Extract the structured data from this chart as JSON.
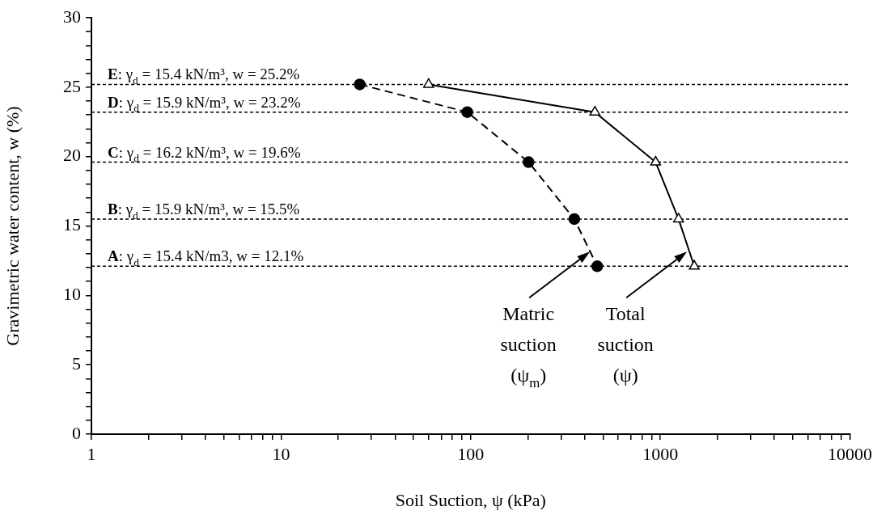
{
  "chart_data": {
    "type": "line",
    "xlabel": "Soil Suction, ψ (kPa)",
    "ylabel": "Gravimetric water content, w (%)",
    "log": "x",
    "xlim": [
      1,
      10000
    ],
    "xticks": [
      1,
      {
        "value": 2,
        "label": null
      },
      {
        "value": 3,
        "label": null
      },
      {
        "value": 4,
        "label": null
      },
      {
        "value": 5,
        "label": null
      },
      {
        "value": 6,
        "label": null
      },
      {
        "value": 7,
        "label": null
      },
      {
        "value": 8,
        "label": null
      },
      {
        "value": 9,
        "label": null
      },
      10,
      {
        "value": 20,
        "label": null
      },
      {
        "value": 30,
        "label": null
      },
      {
        "value": 40,
        "label": null
      },
      {
        "value": 50,
        "label": null
      },
      {
        "value": 60,
        "label": null
      },
      {
        "value": 70,
        "label": null
      },
      {
        "value": 80,
        "label": null
      },
      {
        "value": 90,
        "label": null
      },
      100,
      {
        "value": 200,
        "label": null
      },
      {
        "value": 300,
        "label": null
      },
      {
        "value": 400,
        "label": null
      },
      {
        "value": 500,
        "label": null
      },
      {
        "value": 600,
        "label": null
      },
      {
        "value": 700,
        "label": null
      },
      {
        "value": 800,
        "label": null
      },
      {
        "value": 900,
        "label": null
      },
      1000,
      {
        "value": 2000,
        "label": null
      },
      {
        "value": 3000,
        "label": null
      },
      {
        "value": 4000,
        "label": null
      },
      {
        "value": 5000,
        "label": null
      },
      {
        "value": 6000,
        "label": null
      },
      {
        "value": 7000,
        "label": null
      },
      {
        "value": 8000,
        "label": null
      },
      {
        "value": 9000,
        "label": null
      },
      10000
    ],
    "ylim": [
      0,
      30
    ],
    "yticks": [
      0,
      {
        "value": 1,
        "label": null
      },
      {
        "value": 2,
        "label": null
      },
      {
        "value": 3,
        "label": null
      },
      {
        "value": 4,
        "label": null
      },
      5,
      {
        "value": 6,
        "label": null
      },
      {
        "value": 7,
        "label": null
      },
      {
        "value": 8,
        "label": null
      },
      {
        "value": 9,
        "label": null
      },
      10,
      {
        "value": 11,
        "label": null
      },
      {
        "value": 12,
        "label": null
      },
      {
        "value": 13,
        "label": null
      },
      {
        "value": 14,
        "label": null
      },
      15,
      {
        "value": 16,
        "label": null
      },
      {
        "value": 17,
        "label": null
      },
      {
        "value": 18,
        "label": null
      },
      {
        "value": 19,
        "label": null
      },
      20,
      {
        "value": 21,
        "label": null
      },
      {
        "value": 22,
        "label": null
      },
      {
        "value": 23,
        "label": null
      },
      {
        "value": 24,
        "label": null
      },
      25,
      {
        "value": 26,
        "label": null
      },
      {
        "value": 27,
        "label": null
      },
      {
        "value": 28,
        "label": null
      },
      {
        "value": 29,
        "label": null
      },
      30
    ],
    "grid": false,
    "legend": false,
    "series": [
      {
        "color": "#000000",
        "marker": "circle",
        "line_style": "dashed",
        "x": [
          26,
          96,
          202,
          352,
          465
        ],
        "values": [
          25.2,
          23.2,
          19.6,
          15.5,
          12.1
        ]
      },
      {
        "color": "#000000",
        "marker": "triangle",
        "line_style": "solid",
        "x": [
          60,
          452,
          945,
          1248,
          1511
        ],
        "values": [
          25.2,
          23.2,
          19.6,
          15.5,
          12.1
        ]
      }
    ],
    "ref_lines": [
      {
        "axis": "y",
        "value": 25.2,
        "label": "E: γ$_{d}$ = 15.4 kN/m³, w = 25.2%",
        "color": "#000000",
        "line_style": "dashed"
      },
      {
        "axis": "y",
        "value": 23.2,
        "label": "D: γ$_{d}$ = 15.9 kN/m³, w = 23.2%",
        "color": "#000000",
        "line_style": "dashed"
      },
      {
        "axis": "y",
        "value": 19.6,
        "label": "C: γ$_{d}$ = 16.2 kN/m³, w = 19.6%",
        "color": "#000000",
        "line_style": "dashed"
      },
      {
        "axis": "y",
        "value": 15.5,
        "label": "B: γ$_{d}$ = 15.9 kN/m³, w = 15.5%",
        "color": "#000000",
        "line_style": "dashed"
      },
      {
        "axis": "y",
        "value": 12.1,
        "label": "A: γ$_{d}$ = 15.4 kN/m3, w = 12.1%",
        "color": "#000000",
        "line_style": "dashed"
      }
    ],
    "annotations": [
      {
        "text": "Matric\nsuction\n(ψ$_{m}$)",
        "x": 465,
        "y": 12.1
      },
      {
        "text": "Total\nsuction\n(ψ)",
        "x": 1511,
        "y": 12.1
      }
    ]
  }
}
